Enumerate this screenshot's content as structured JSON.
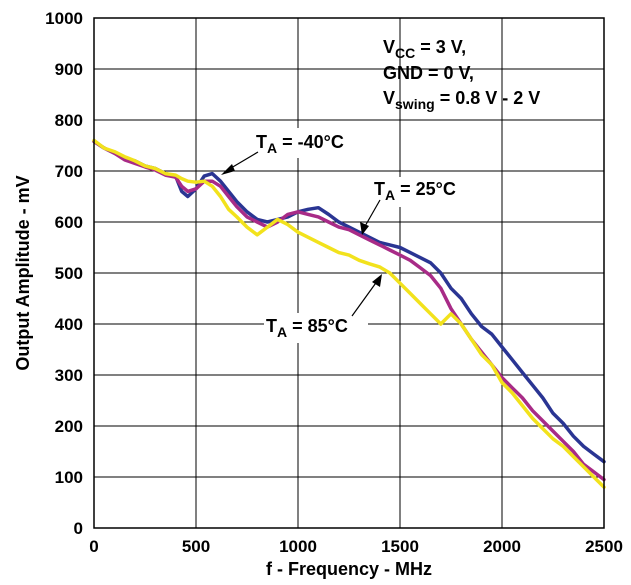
{
  "chart_data": {
    "type": "line",
    "xlabel": "f - Frequency - MHz",
    "ylabel": "Output Amplitude - mV",
    "xlim": [
      0,
      2500
    ],
    "ylim": [
      0,
      1000
    ],
    "xticks": [
      "0",
      "500",
      "1000",
      "1500",
      "2000",
      "2500"
    ],
    "yticks": [
      "0",
      "100",
      "200",
      "300",
      "400",
      "500",
      "600",
      "700",
      "800",
      "900",
      "1000"
    ],
    "grid": true,
    "conditions": {
      "vcc": {
        "main": "V",
        "sub": "CC",
        "rest": " = 3 V,"
      },
      "gnd": {
        "main": "GND = 0 V,"
      },
      "vswing": {
        "main": "V",
        "sub": "swing",
        "rest": " = 0.8 V - 2 V"
      }
    },
    "series": [
      {
        "label_main": "T",
        "label_sub": "A",
        "label_rest": " = -40°C",
        "color": "#2a3593",
        "x": [
          0,
          50,
          100,
          150,
          200,
          250,
          300,
          350,
          400,
          430,
          460,
          500,
          540,
          580,
          620,
          660,
          700,
          750,
          800,
          850,
          900,
          950,
          1000,
          1050,
          1100,
          1150,
          1200,
          1250,
          1300,
          1350,
          1400,
          1450,
          1500,
          1550,
          1600,
          1650,
          1700,
          1750,
          1800,
          1850,
          1900,
          1950,
          2000,
          2050,
          2100,
          2150,
          2200,
          2250,
          2300,
          2350,
          2400,
          2450,
          2500
        ],
        "y": [
          758,
          745,
          735,
          725,
          720,
          710,
          705,
          695,
          690,
          660,
          650,
          665,
          690,
          695,
          680,
          660,
          640,
          620,
          605,
          600,
          605,
          610,
          620,
          625,
          628,
          615,
          600,
          590,
          580,
          570,
          560,
          555,
          550,
          540,
          530,
          520,
          500,
          470,
          450,
          420,
          395,
          380,
          355,
          330,
          305,
          280,
          255,
          225,
          205,
          180,
          160,
          145,
          130
        ]
      },
      {
        "label_main": "T",
        "label_sub": "A",
        "label_rest": " = 25°C",
        "color": "#a82b87",
        "x": [
          0,
          50,
          100,
          150,
          200,
          250,
          300,
          350,
          400,
          430,
          460,
          500,
          540,
          580,
          620,
          660,
          700,
          750,
          800,
          850,
          900,
          950,
          1000,
          1050,
          1100,
          1150,
          1200,
          1250,
          1300,
          1350,
          1400,
          1450,
          1500,
          1550,
          1600,
          1650,
          1700,
          1750,
          1800,
          1850,
          1900,
          1950,
          2000,
          2050,
          2100,
          2150,
          2200,
          2250,
          2300,
          2350,
          2400,
          2450,
          2500
        ],
        "y": [
          758,
          745,
          735,
          722,
          715,
          708,
          702,
          692,
          688,
          670,
          660,
          665,
          680,
          680,
          670,
          650,
          630,
          610,
          600,
          590,
          600,
          615,
          620,
          615,
          610,
          600,
          590,
          585,
          575,
          565,
          555,
          545,
          535,
          525,
          510,
          495,
          470,
          430,
          400,
          370,
          345,
          320,
          295,
          275,
          255,
          230,
          210,
          190,
          170,
          150,
          125,
          110,
          95
        ]
      },
      {
        "label_main": "T",
        "label_sub": "A",
        "label_rest": " = 85°C",
        "color": "#f2e21c",
        "x": [
          0,
          50,
          100,
          150,
          200,
          250,
          300,
          350,
          400,
          430,
          460,
          500,
          540,
          580,
          620,
          660,
          700,
          750,
          800,
          850,
          900,
          950,
          1000,
          1050,
          1100,
          1150,
          1200,
          1250,
          1300,
          1350,
          1400,
          1450,
          1500,
          1550,
          1600,
          1650,
          1700,
          1750,
          1800,
          1850,
          1900,
          1950,
          2000,
          2050,
          2100,
          2150,
          2200,
          2250,
          2300,
          2350,
          2400,
          2450,
          2500
        ],
        "y": [
          760,
          745,
          738,
          728,
          720,
          710,
          705,
          695,
          692,
          685,
          680,
          678,
          680,
          670,
          650,
          625,
          610,
          590,
          575,
          590,
          605,
          595,
          580,
          570,
          560,
          550,
          540,
          535,
          525,
          518,
          512,
          500,
          480,
          460,
          440,
          420,
          400,
          420,
          400,
          370,
          340,
          320,
          285,
          265,
          240,
          215,
          195,
          175,
          160,
          140,
          120,
          100,
          80
        ]
      }
    ]
  }
}
